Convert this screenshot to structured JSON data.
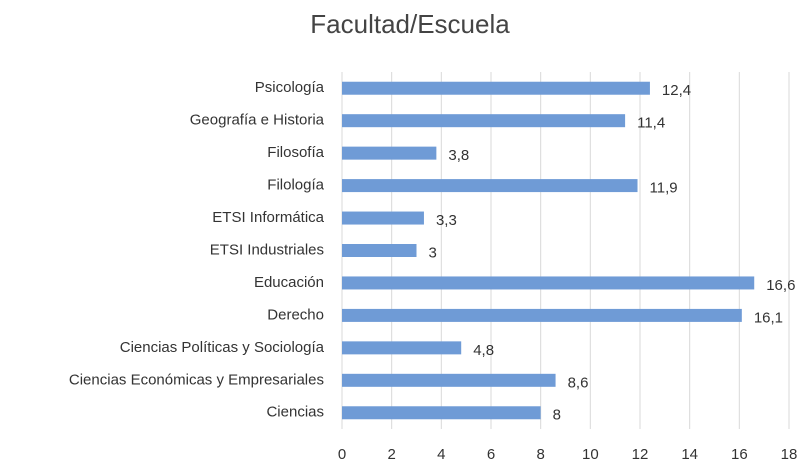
{
  "chart_data": {
    "type": "bar",
    "orientation": "horizontal",
    "title": "Facultad/Escuela",
    "categories": [
      "Psicología",
      "Geografía e Historia",
      "Filosofía",
      "Filología",
      "ETSI Informática",
      "ETSI Industriales",
      "Educación",
      "Derecho",
      "Ciencias Políticas y Sociología",
      "Ciencias Económicas y Empresariales",
      "Ciencias"
    ],
    "values": [
      12.4,
      11.4,
      3.8,
      11.9,
      3.3,
      3,
      16.6,
      16.1,
      4.8,
      8.6,
      8
    ],
    "value_labels": [
      "12,4",
      "11,4",
      "3,8",
      "11,9",
      "3,3",
      "3",
      "16,6",
      "16,1",
      "4,8",
      "8,6",
      "8"
    ],
    "color": "#6f9bd6",
    "xlim": [
      0,
      18
    ],
    "xticks": [
      0,
      2,
      4,
      6,
      8,
      10,
      12,
      14,
      16,
      18
    ],
    "grid": true
  }
}
